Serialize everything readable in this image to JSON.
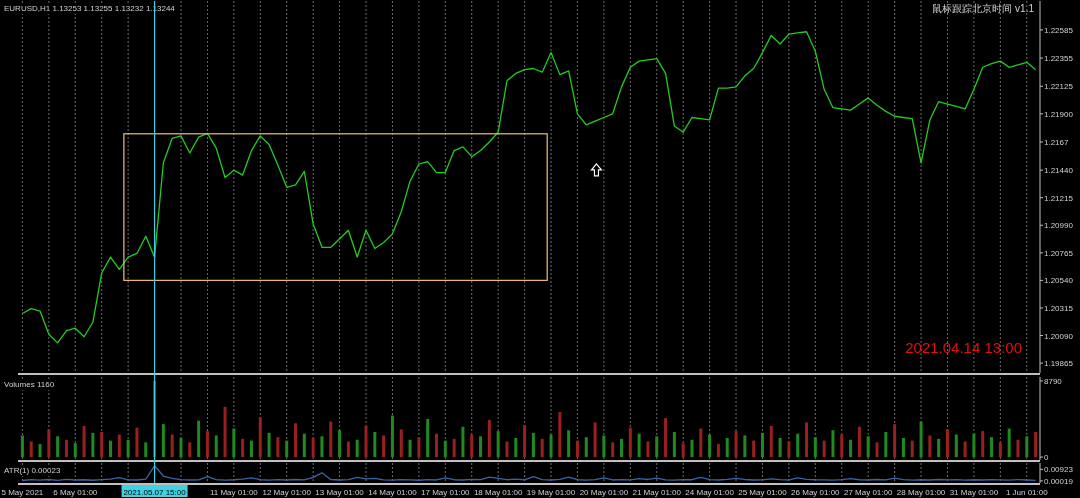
{
  "chart_data": [
    {
      "type": "line",
      "title": "EURUSD,H1 1.13253 1.13255 1.13232 1.13244",
      "annotations": [
        "鼠标跟踪北京时间 v1.1",
        "2021.04.14 13:00"
      ],
      "series": [
        {
          "color": "#22cc22",
          "values": [
            1.2027,
            1.2031,
            1.2029,
            1.201,
            1.2003,
            1.2013,
            1.2015,
            1.2008,
            1.202,
            1.206,
            1.2073,
            1.2063,
            1.2073,
            1.2076,
            1.209,
            1.2073,
            1.215,
            1.217,
            1.2172,
            1.2158,
            1.2171,
            1.2174,
            1.2162,
            1.2138,
            1.2144,
            1.214,
            1.216,
            1.2172,
            1.2165,
            1.2148,
            1.213,
            1.2132,
            1.2143,
            1.21,
            1.2081,
            1.2081,
            1.2088,
            1.2095,
            1.2073,
            1.2095,
            1.208,
            1.2085,
            1.2092,
            1.211,
            1.2135,
            1.2149,
            1.2151,
            1.2142,
            1.2142,
            1.216,
            1.2163,
            1.2155,
            1.216,
            1.2167,
            1.2175,
            1.2217,
            1.2223,
            1.2226,
            1.2227,
            1.2224,
            1.224,
            1.2222,
            1.2225,
            1.219,
            1.2181,
            1.2184,
            1.2187,
            1.219,
            1.2212,
            1.2228,
            1.2233,
            1.2234,
            1.2235,
            1.2223,
            1.218,
            1.2175,
            1.2187,
            1.2186,
            1.2185,
            1.2211,
            1.2211,
            1.2212,
            1.2221,
            1.2227,
            1.224,
            1.2254,
            1.2247,
            1.2255,
            1.2256,
            1.2257,
            1.2241,
            1.221,
            1.2195,
            1.2194,
            1.2193,
            1.2198,
            1.2203,
            1.2197,
            1.2192,
            1.2188,
            1.2187,
            1.2186,
            1.215,
            1.2185,
            1.22,
            1.2198,
            1.2196,
            1.2194,
            1.221,
            1.2228,
            1.2231,
            1.2233,
            1.2228,
            1.223,
            1.2232,
            1.2226
          ]
        }
      ],
      "ylim": [
        1.19784,
        1.22821
      ],
      "yticks": [
        1.22585,
        1.22355,
        1.22125,
        {
          "value": 1.219,
          "label": "1.21900"
        },
        1.2167,
        {
          "value": 1.2144,
          "label": "1.21440"
        },
        1.21215,
        {
          "value": 1.2099,
          "label": "1.20990"
        },
        1.20765,
        {
          "value": 1.2054,
          "label": "1.20540"
        },
        1.20315,
        {
          "value": 1.2009,
          "label": "1.20090"
        },
        1.19865
      ],
      "grid": "x",
      "tick_labels": "y"
    },
    {
      "type": "bar",
      "title": "Volumes 1160",
      "values": [
        2500,
        1800,
        1500,
        3200,
        2400,
        2000,
        1600,
        3600,
        2800,
        2900,
        1900,
        2600,
        2000,
        3400,
        1700,
        8790,
        3800,
        2600,
        2200,
        1700,
        4200,
        3000,
        2500,
        5800,
        3300,
        2100,
        1900,
        4600,
        2800,
        2300,
        1900,
        3900,
        2700,
        2200,
        2400,
        4100,
        3100,
        1800,
        2000,
        3600,
        2900,
        2500,
        4800,
        3200,
        2000,
        2300,
        4400,
        2700,
        1900,
        2100,
        3500,
        2600,
        2400,
        4300,
        3000,
        1800,
        2200,
        3700,
        2800,
        2100,
        2600,
        5200,
        3100,
        1900,
        2300,
        4000,
        2500,
        1700,
        2100,
        3400,
        2700,
        1800,
        2400,
        4500,
        2900,
        1600,
        2000,
        3300,
        2600,
        1500,
        2200,
        3000,
        2500,
        1900,
        2800,
        3600,
        2200,
        1800,
        2700,
        4000,
        2300,
        1900,
        3100,
        2600,
        2000,
        3500,
        2400,
        1700,
        2900,
        3800,
        2200,
        1900,
        4100,
        2500,
        2100,
        3200,
        2600,
        1800,
        2700,
        3000,
        2300,
        1700,
        3300,
        2000,
        2400,
        2900
      ],
      "colors": [
        "#1f8a1f",
        "#9a1f1f",
        "#1f8a1f",
        "#9a1f1f",
        "#1f8a1f",
        "#9a1f1f",
        "#1f8a1f",
        "#9a1f1f",
        "#1f8a1f",
        "#9a1f1f",
        "#1f8a1f",
        "#9a1f1f",
        "#1f8a1f",
        "#9a1f1f",
        "#1f8a1f",
        "#9a1f1f",
        "#1f8a1f",
        "#9a1f1f",
        "#1f8a1f",
        "#9a1f1f",
        "#1f8a1f",
        "#9a1f1f",
        "#1f8a1f",
        "#9a1f1f",
        "#1f8a1f",
        "#9a1f1f",
        "#1f8a1f",
        "#9a1f1f",
        "#1f8a1f",
        "#9a1f1f",
        "#1f8a1f",
        "#9a1f1f",
        "#1f8a1f",
        "#9a1f1f",
        "#1f8a1f",
        "#9a1f1f",
        "#1f8a1f",
        "#9a1f1f",
        "#1f8a1f",
        "#9a1f1f",
        "#1f8a1f",
        "#9a1f1f",
        "#1f8a1f",
        "#9a1f1f",
        "#1f8a1f",
        "#9a1f1f",
        "#1f8a1f",
        "#9a1f1f",
        "#1f8a1f",
        "#9a1f1f",
        "#1f8a1f",
        "#9a1f1f",
        "#1f8a1f",
        "#9a1f1f",
        "#1f8a1f",
        "#9a1f1f",
        "#1f8a1f",
        "#9a1f1f",
        "#1f8a1f",
        "#9a1f1f",
        "#1f8a1f",
        "#9a1f1f",
        "#1f8a1f",
        "#9a1f1f",
        "#1f8a1f",
        "#9a1f1f",
        "#1f8a1f",
        "#9a1f1f",
        "#1f8a1f",
        "#9a1f1f",
        "#1f8a1f",
        "#9a1f1f",
        "#1f8a1f",
        "#9a1f1f",
        "#1f8a1f",
        "#9a1f1f",
        "#1f8a1f",
        "#9a1f1f",
        "#1f8a1f",
        "#9a1f1f",
        "#1f8a1f",
        "#9a1f1f",
        "#1f8a1f",
        "#9a1f1f",
        "#1f8a1f",
        "#9a1f1f",
        "#1f8a1f",
        "#9a1f1f",
        "#1f8a1f",
        "#9a1f1f",
        "#1f8a1f",
        "#9a1f1f",
        "#1f8a1f",
        "#9a1f1f",
        "#1f8a1f",
        "#9a1f1f",
        "#1f8a1f",
        "#9a1f1f",
        "#1f8a1f",
        "#9a1f1f",
        "#1f8a1f",
        "#9a1f1f",
        "#1f8a1f",
        "#9a1f1f",
        "#1f8a1f",
        "#9a1f1f",
        "#1f8a1f",
        "#9a1f1f",
        "#1f8a1f",
        "#9a1f1f",
        "#1f8a1f",
        "#9a1f1f",
        "#1f8a1f",
        "#9a1f1f",
        "#1f8a1f",
        "#9a1f1f"
      ],
      "ylim": [
        -340,
        9250
      ],
      "yticks": [
        8790,
        0
      ],
      "grid": "x",
      "tick_labels": "y"
    },
    {
      "type": "line",
      "title": "ATR(1) 0.00023",
      "categories": [
        "5 May 2021",
        null,
        null,
        null,
        null,
        null,
        "6 May 01:00",
        null,
        null,
        null,
        null,
        null,
        null,
        null,
        null,
        "2021.05.07 15:00",
        null,
        null,
        null,
        null,
        null,
        null,
        null,
        null,
        "11 May 01:00",
        null,
        null,
        null,
        null,
        null,
        "12 May 01:00",
        null,
        null,
        null,
        null,
        null,
        "13 May 01:00",
        null,
        null,
        null,
        null,
        null,
        "14 May 01:00",
        null,
        null,
        null,
        null,
        null,
        "17 May 01:00",
        null,
        null,
        null,
        null,
        null,
        "18 May 01:00",
        null,
        null,
        null,
        null,
        null,
        "19 May 01:00",
        null,
        null,
        null,
        null,
        null,
        "20 May 01:00",
        null,
        null,
        null,
        null,
        null,
        "21 May 01:00",
        null,
        null,
        null,
        null,
        null,
        "24 May 01:00",
        null,
        null,
        null,
        null,
        null,
        "25 May 01:00",
        null,
        null,
        null,
        null,
        null,
        "26 May 01:00",
        null,
        null,
        null,
        null,
        null,
        "27 May 01:00",
        null,
        null,
        null,
        null,
        null,
        "28 May 01:00",
        null,
        null,
        null,
        null,
        null,
        "31 May 01:00",
        null,
        null,
        null,
        null,
        null,
        "1 Jun 01:00",
        null
      ],
      "series": [
        {
          "color": "#3a64a8",
          "values": [
            0.0005,
            0.0012,
            0.0008,
            0.0013,
            0.0006,
            0.0014,
            0.0009,
            0.0011,
            0.0007,
            0.0012,
            0.0016,
            0.0028,
            0.001,
            0.0009,
            0.0015,
            0.012,
            0.004,
            0.0022,
            0.0012,
            0.0009,
            0.001,
            0.0035,
            0.0012,
            0.0008,
            0.0011,
            0.0016,
            0.0025,
            0.0011,
            0.0008,
            0.0012,
            0.0009,
            0.0013,
            0.001,
            0.003,
            0.0065,
            0.0013,
            0.0009,
            0.0012,
            0.003,
            0.0018,
            0.0021,
            0.001,
            0.0008,
            0.0012,
            0.001,
            0.0007,
            0.0012,
            0.0009,
            0.0026,
            0.0011,
            0.0009,
            0.0014,
            0.0012,
            0.0032,
            0.0022,
            0.0011,
            0.0015,
            0.001,
            0.0035,
            0.0012,
            0.0009,
            0.0014,
            0.0031,
            0.0011,
            0.0008,
            0.0012,
            0.0025,
            0.0009,
            0.0012,
            0.001,
            0.0019,
            0.0013,
            0.0023,
            0.001,
            0.0008,
            0.0012,
            0.0011,
            0.0029,
            0.0012,
            0.0009,
            0.0014,
            0.0022,
            0.0013,
            0.0009,
            0.001,
            0.0018,
            0.0012,
            0.0009,
            0.0025,
            0.0014,
            0.0011,
            0.001,
            0.0008,
            0.0012,
            0.0019,
            0.0011,
            0.0009,
            0.0013,
            0.001,
            0.0024,
            0.0012,
            0.0008,
            0.0011,
            0.0009,
            0.0013,
            0.001,
            0.0012,
            0.0008,
            0.0011,
            0.0009,
            0.0012,
            0.001,
            0.0008,
            0.0012,
            0.0009,
            0.0006
          ]
        }
      ],
      "ylim": [
        -0.00145,
        0.01416
      ],
      "yticks": [
        0.00923,
        0.00019
      ],
      "grid": "x",
      "ref_lines": [
        {
          "axis": "x",
          "value": "2021.05.07 15:00",
          "color": "#40d0e0"
        }
      ]
    }
  ]
}
